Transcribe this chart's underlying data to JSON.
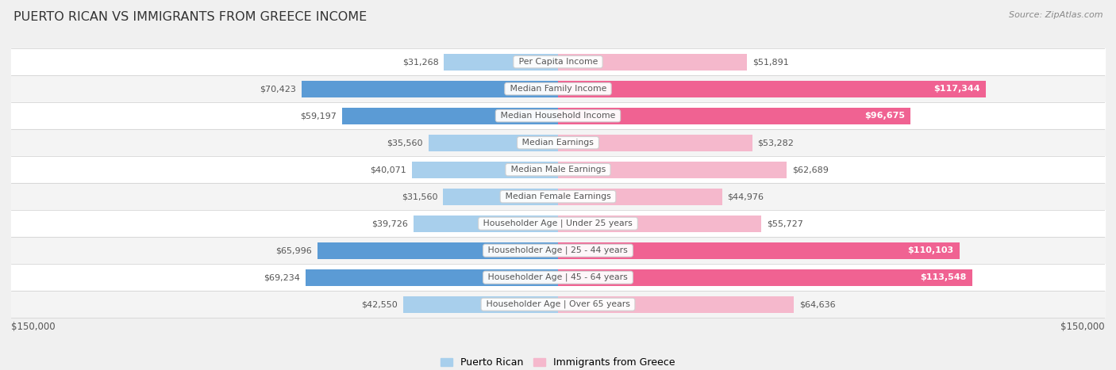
{
  "title": "PUERTO RICAN VS IMMIGRANTS FROM GREECE INCOME",
  "source": "Source: ZipAtlas.com",
  "categories": [
    "Per Capita Income",
    "Median Family Income",
    "Median Household Income",
    "Median Earnings",
    "Median Male Earnings",
    "Median Female Earnings",
    "Householder Age | Under 25 years",
    "Householder Age | 25 - 44 years",
    "Householder Age | 45 - 64 years",
    "Householder Age | Over 65 years"
  ],
  "puerto_rican": [
    31268,
    70423,
    59197,
    35560,
    40071,
    31560,
    39726,
    65996,
    69234,
    42550
  ],
  "greece": [
    51891,
    117344,
    96675,
    53282,
    62689,
    44976,
    55727,
    110103,
    113548,
    64636
  ],
  "puerto_rican_labels": [
    "$31,268",
    "$70,423",
    "$59,197",
    "$35,560",
    "$40,071",
    "$31,560",
    "$39,726",
    "$65,996",
    "$69,234",
    "$42,550"
  ],
  "greece_labels": [
    "$51,891",
    "$117,344",
    "$96,675",
    "$53,282",
    "$62,689",
    "$44,976",
    "$55,727",
    "$110,103",
    "$113,548",
    "$64,636"
  ],
  "pr_color_normal": "#A8CFEC",
  "pr_color_highlight": "#5B9BD5",
  "gr_color_normal": "#F5B8CC",
  "gr_color_highlight": "#F06292",
  "highlight_rows": [
    false,
    true,
    true,
    false,
    false,
    false,
    false,
    true,
    true,
    false
  ],
  "max_val": 150000,
  "row_colors": [
    "#f7f7f7",
    "#eeeeee",
    "#f7f7f7",
    "#eeeeee",
    "#f7f7f7",
    "#eeeeee",
    "#f7f7f7",
    "#eeeeee",
    "#f7f7f7",
    "#eeeeee"
  ],
  "bg_color": "#f0f0f0"
}
